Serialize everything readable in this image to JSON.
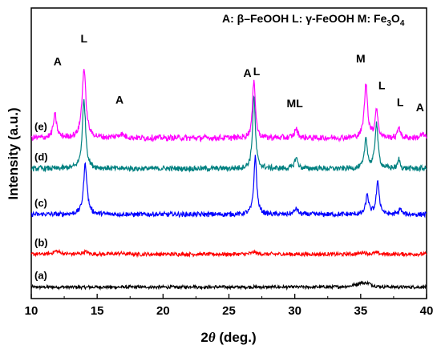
{
  "chart_data": {
    "type": "line",
    "title": "A: β–FeOOH L: γ-FeOOH M: Fe3O4",
    "legend_key": {
      "A_label": "A: β–FeOOH",
      "L_label": "L: γ-FeOOH",
      "M_label_prefix": "M: Fe",
      "M_sub_1": "3",
      "M_mid": "O",
      "M_sub_2": "4"
    },
    "xlabel_prefix": "2",
    "xlabel_theta": "θ",
    "xlabel_suffix": " (deg.)",
    "ylabel": "Intensity (a.u.)",
    "xlim": [
      10,
      40
    ],
    "x_ticks": [
      "10",
      "15",
      "20",
      "25",
      "30",
      "35",
      "40"
    ],
    "y_ticks_shown": false,
    "series": [
      {
        "name": "(a)",
        "color": "#000000",
        "baseline": 0.15,
        "noise": 0.012,
        "peaks": [
          {
            "x": 35.0,
            "h": 0.05,
            "w": 1.0
          },
          {
            "x": 35.6,
            "h": 0.03,
            "w": 0.6
          },
          {
            "x": 22.3,
            "h": 0.015,
            "w": 0.3
          }
        ]
      },
      {
        "name": "(b)",
        "color": "#ff0000",
        "baseline": 0.58,
        "noise": 0.014,
        "peaks": [
          {
            "x": 11.9,
            "h": 0.04,
            "w": 0.6
          },
          {
            "x": 14.1,
            "h": 0.03,
            "w": 0.5
          },
          {
            "x": 16.8,
            "h": 0.015,
            "w": 0.5
          },
          {
            "x": 26.9,
            "h": 0.03,
            "w": 0.4
          },
          {
            "x": 35.2,
            "h": 0.025,
            "w": 0.5
          },
          {
            "x": 36.2,
            "h": 0.02,
            "w": 0.4
          }
        ]
      },
      {
        "name": "(c)",
        "color": "#0000ff",
        "baseline": 1.1,
        "noise": 0.018,
        "peaks": [
          {
            "x": 14.1,
            "h": 0.66,
            "w": 0.32
          },
          {
            "x": 27.0,
            "h": 0.76,
            "w": 0.26
          },
          {
            "x": 30.1,
            "h": 0.08,
            "w": 0.3
          },
          {
            "x": 35.5,
            "h": 0.26,
            "w": 0.25
          },
          {
            "x": 36.3,
            "h": 0.42,
            "w": 0.28
          },
          {
            "x": 38.0,
            "h": 0.08,
            "w": 0.2
          }
        ]
      },
      {
        "name": "(d)",
        "color": "#008080",
        "baseline": 1.7,
        "noise": 0.02,
        "peaks": [
          {
            "x": 14.0,
            "h": 0.9,
            "w": 0.3
          },
          {
            "x": 26.9,
            "h": 0.96,
            "w": 0.25
          },
          {
            "x": 30.1,
            "h": 0.14,
            "w": 0.3
          },
          {
            "x": 35.4,
            "h": 0.4,
            "w": 0.25
          },
          {
            "x": 36.2,
            "h": 0.6,
            "w": 0.27
          },
          {
            "x": 37.9,
            "h": 0.12,
            "w": 0.2
          }
        ]
      },
      {
        "name": "(e)",
        "color": "#ff00ff",
        "baseline": 2.1,
        "noise": 0.022,
        "peaks": [
          {
            "x": 11.8,
            "h": 0.3,
            "w": 0.3
          },
          {
            "x": 14.0,
            "h": 0.9,
            "w": 0.35
          },
          {
            "x": 16.8,
            "h": 0.05,
            "w": 0.6
          },
          {
            "x": 26.9,
            "h": 0.78,
            "w": 0.25
          },
          {
            "x": 30.1,
            "h": 0.12,
            "w": 0.3
          },
          {
            "x": 35.4,
            "h": 0.7,
            "w": 0.3
          },
          {
            "x": 36.2,
            "h": 0.38,
            "w": 0.25
          },
          {
            "x": 37.9,
            "h": 0.16,
            "w": 0.2
          },
          {
            "x": 39.7,
            "h": 0.05,
            "w": 0.3
          }
        ]
      }
    ],
    "annotations": [
      {
        "text": "A",
        "x": 12.0,
        "y": 3.05
      },
      {
        "text": "L",
        "x": 14.0,
        "y": 3.35
      },
      {
        "text": "A",
        "x": 16.7,
        "y": 2.55
      },
      {
        "text": "A",
        "x": 26.4,
        "y": 2.9
      },
      {
        "text": "L",
        "x": 27.1,
        "y": 2.92
      },
      {
        "text": "ML",
        "x": 30.0,
        "y": 2.5
      },
      {
        "text": "M",
        "x": 35.0,
        "y": 3.09
      },
      {
        "text": "L",
        "x": 36.6,
        "y": 2.74
      },
      {
        "text": "L",
        "x": 38.0,
        "y": 2.52
      },
      {
        "text": "A",
        "x": 39.5,
        "y": 2.45
      }
    ],
    "ylim": [
      0,
      3.8
    ]
  }
}
